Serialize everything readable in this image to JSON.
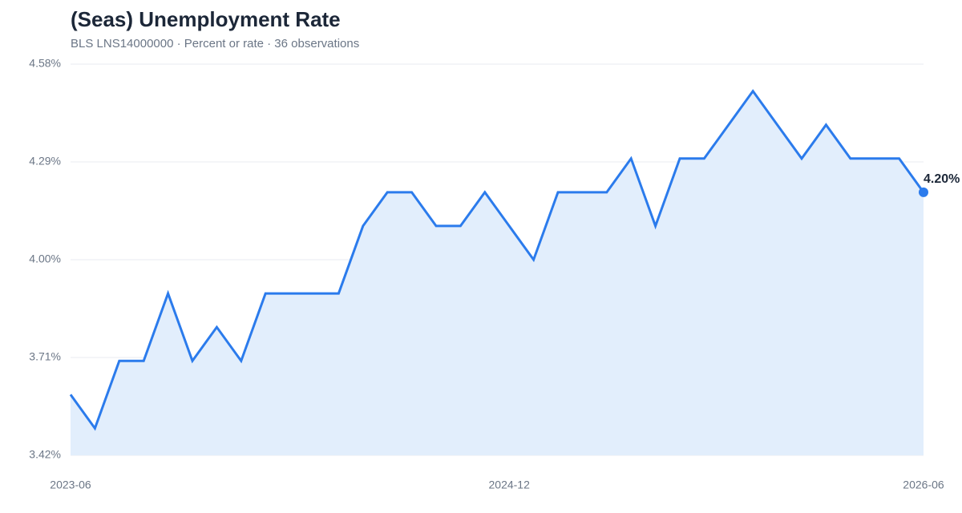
{
  "chart_data": {
    "type": "line",
    "title": "(Seas) Unemployment Rate",
    "subtitle": "BLS LNS14000000 · Percent or rate · 36 observations",
    "categories": [
      "2023-06",
      null,
      null,
      null,
      null,
      null,
      null,
      null,
      null,
      null,
      null,
      null,
      null,
      null,
      null,
      null,
      null,
      null,
      "2024-12",
      null,
      null,
      null,
      null,
      null,
      null,
      null,
      null,
      null,
      null,
      null,
      null,
      null,
      null,
      null,
      null,
      "2026-06"
    ],
    "series": [
      {
        "name": "Unemployment Rate",
        "color": "#2b7bec",
        "values": [
          3.6,
          3.5,
          3.7,
          3.7,
          3.9,
          3.7,
          3.8,
          3.7,
          3.9,
          3.9,
          3.9,
          3.9,
          4.1,
          4.2,
          4.2,
          4.1,
          4.1,
          4.2,
          4.1,
          4.0,
          4.2,
          4.2,
          4.2,
          4.3,
          4.1,
          4.3,
          4.3,
          4.4,
          4.5,
          4.4,
          4.3,
          4.4,
          4.3,
          4.3,
          4.3,
          4.2
        ]
      }
    ],
    "end_label": "4.20%",
    "area_color": "#e2eefc",
    "ylim": [
      3.42,
      4.58
    ],
    "yticks": [
      {
        "value": 3.42,
        "label": "3.42%"
      },
      {
        "value": 3.71,
        "label": "3.71%"
      },
      {
        "value": 4.0,
        "label": "4.00%"
      },
      {
        "value": 4.29,
        "label": "4.29%"
      },
      {
        "value": 4.58,
        "label": "4.58%"
      }
    ],
    "grid": true
  }
}
